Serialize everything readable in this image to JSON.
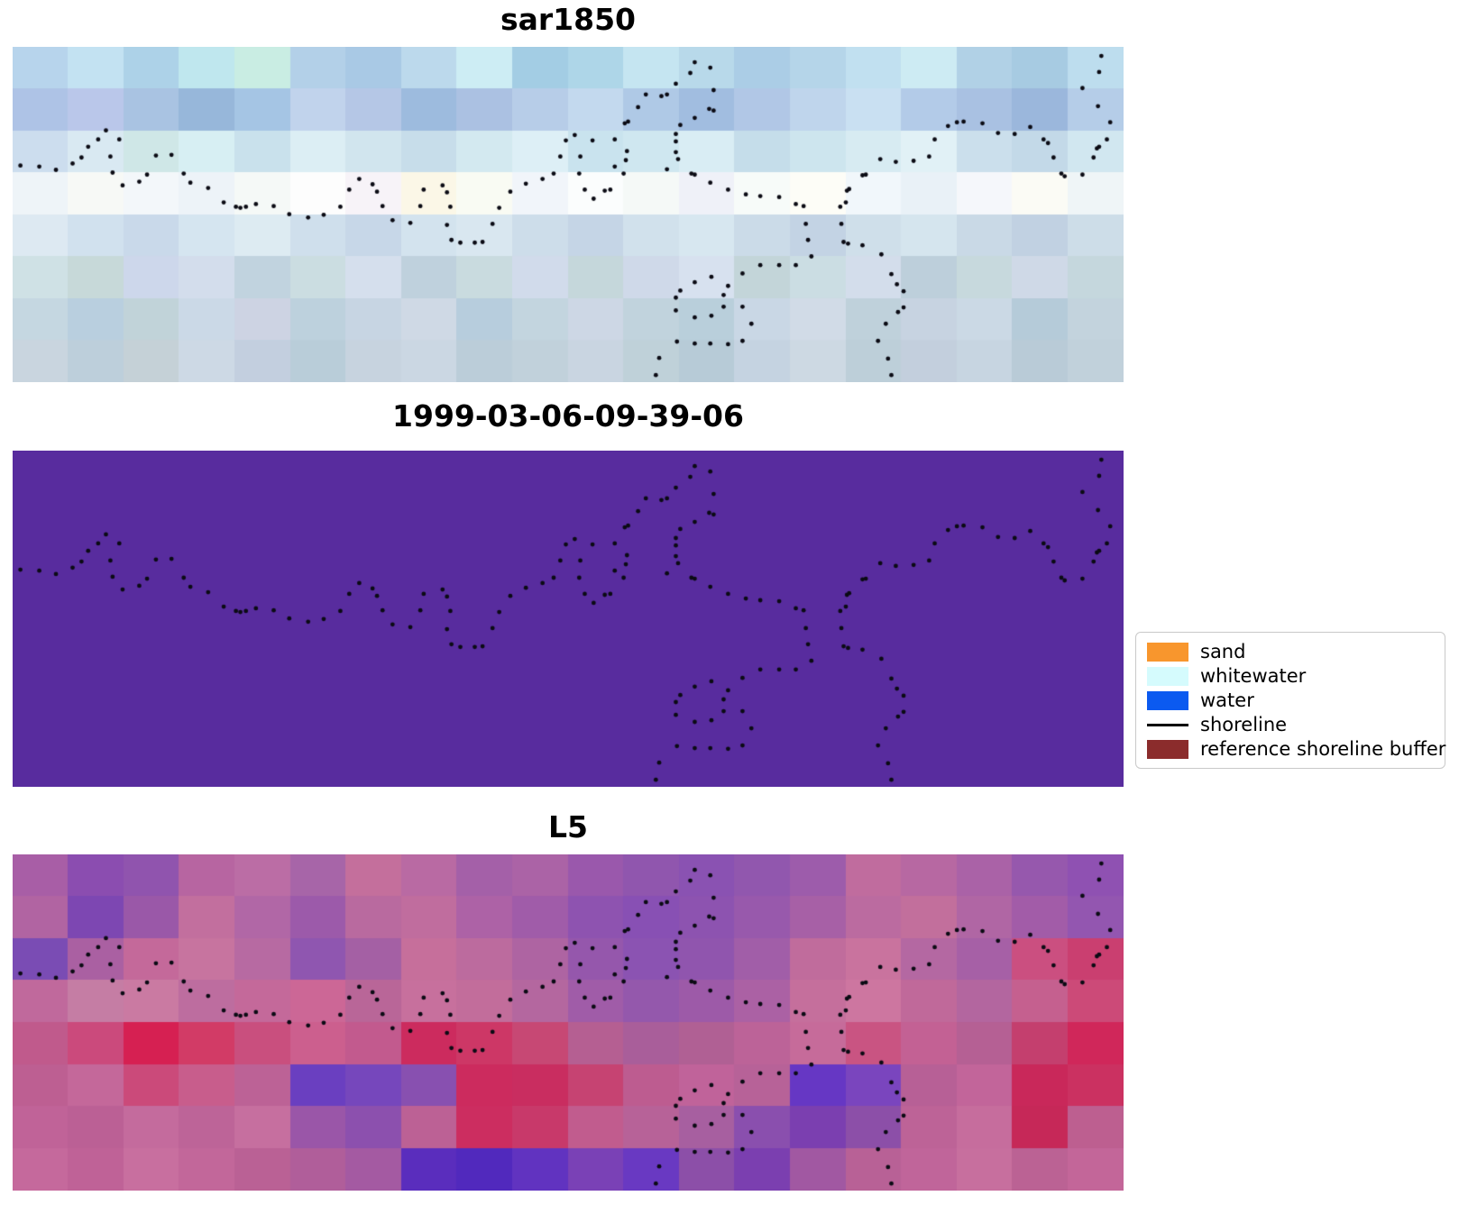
{
  "chart_data": {
    "type": "heatmap",
    "description": "Three stacked satellite image panels with identical dotted shoreline overlay and a classification legend",
    "panels": [
      {
        "title": "sar1850",
        "type": "rgb_grid",
        "grid": {
          "cols": 20,
          "rows": [
            "b7d4ec c3e2f2 add2e8 bfe7ee c9ede3 b3d0e8 a9c9e5 bcd9ec cdedf4 a3cde4 aed6e8 c5e5f1 b8d9ea abcde6 b5d5e9 c1e0f0 cdebf3 b1d1e6 a7cbe2 bdddee",
            "aec3e6 bac7ea a9c3e2 97b7da a5c5e4 c1d3ec b5c7e6 9dbbde abc1e2 b7cde8 c3d9ee afc9e6 a1bde0 b1c7e6 bfd5ec c9e0f2 b3cbe8 a9c1e2 9bb7dc b5cde8",
            "ccddee d9e9f2 cfe7e7 d7eff3 c9e1ec dceef4 d1e5ee c7ddea d3e9f0 ddeff6 c9e3ee cfe7f0 d9edf4 c5ddea cde5ee d7ebf2 e1f1f6 cbdfec c3d9e8 d1e7f0",
            "eef4f8 f7f9f6 f3f7fa edf3f8 f5f9f7 fdfdfd f7f3f8 fbf7e7 f9fbf3 f1f5fa fbfdfd f5f9f7 eff1f8 f7fbf9 fdfdf7 f1f7fb e9f1f7 f5f7fb fbfbf5 eff5f7",
            "dde9f2 d1e1ee c9d9ea d5e5f0 ddebf2 cfdfec c7d7e8 d3e3ee d9e7f0 cdddea c5d5e6 d1e1ec d7e7f0 cbdbe8 c3d3e4 cfdfea d5e5ee c9d9e6 c1d1e2 cddde8",
            "cfe1e5 c7d9d9 cdd7eb d3ddec c1d3df cbdde1 d5dfed bfd1dd c9dbdf d1dbeb c5d7db cfd9e9 d7e1ef c3d5d9 cbdde3 d3ddeb bdcfdb c7d9dd cfd9e7 c5d7dd",
            "c5d7e1 b9cfdf c1d3d9 cbd9e7 cdd3e3 bdd1dd c7d5e3 cfd9e5 b7cddd c3d5df cdd7e5 c1d3dd b9cfdb c9d7e5 d1dbe7 bfd1db c7d3e1 cbd9e5 b5cbd9 c3d3dd",
            "c9d5df bdcfdb c5d1d7 cdd9e5 c3cfdf b9cdd9 c7d3df cbd7e3 bbcdd9 c1d1db c9d5e1 bfd1d9 b7cbd7 c5d3e1 cdd9e3 bdcfd9 c3cfdd c7d5e1 b9cbd7 c1d1db"
          ]
        }
      },
      {
        "title": "1999-03-06-09-39-06",
        "type": "solid",
        "color": "#582c9e"
      },
      {
        "title": "L5",
        "type": "rgb_grid",
        "grid": {
          "cols": 20,
          "rows": [
            "a85ea6 8b4db0 9054ae b765a1 bb6da5 a765a8 c46f9c b96aa3 a460a8 ab63a6 9a58ac 9056ae 8a52b2 9157ae 9d5cab c06c9e b768a2 aa62a7 9658ad 8f51b2",
            "b164a2 7d47b2 9a58a8 c26f9e b167a6 9c5aaa b96a9f c06d9e ad62a6 a05ca9 8e53b0 8850b4 8d53b0 9859ac a760a6 bb6ba0 c26f9c b066a4 a25ca8 9356b0",
            "7a4cb4 aa60a2 c4699a c7749f b76aa2 8f56b0 a460a4 c66f9b bc6b9e ae64a2 9557ac 8b53b2 9055ae a15ea8 c06c9c c9739e b468a2 a660a6 cb4f80 ca3f70",
            "c0699c c57da4 ca7aa2 bd6d9f c4699a cc6796 b96698 c7709d c26d9b b4679f a05ca8 9458ac 9d5aa8 ab61a4 c56f9c cd76a0 c0699a b3669f c5608f cc4a78",
            "c05a8c cb4a7c d62052 d23b66 c94f7e cc5f8e c25a8e cc2b5e cd3766 c74874 b55f92 a95e9a b06094 bc6398 c66b9a c95482 c36194 b56094 c43f6e d0275a",
            "bd5f92 c4689a cb4a7a c85d8c bc6296 6a3fc0 7647bc 8850b0 cc2b5e c92d60 c64372 bd5c90 c0639a b76298 6637c4 7a45be b76096 c2659a c9285a cb3161",
            "c06398 bb6095 c46b9d bd6498 c66f9f 9a56a8 8c50ae bc6195 cc2d60 c8396a c15c8e b76298 a75fa0 8a4fae 7b3fb0 8c4fa8 bd6397 c66d9d c62858 bd5f90",
            "c5699c bf6297 c86f9f c2679a ba6195 b05e9a a45aa2 5a2dbd 5129bd 6133c0 7a41b6 6939c2 8c4fa8 7b3fb0 a158a2 b86196 c0659a c76f9e bb6294 c36699"
          ]
        }
      }
    ],
    "legend": {
      "items": [
        {
          "label": "sand",
          "color": "#f8962d",
          "style": "patch"
        },
        {
          "label": "whitewater",
          "color": "#d5fbfd",
          "style": "patch"
        },
        {
          "label": "water",
          "color": "#0b5af0",
          "style": "patch"
        },
        {
          "label": "shoreline",
          "color": "#000000",
          "style": "line"
        },
        {
          "label": "reference shoreline buffer",
          "color": "#8b2c2c",
          "style": "patch"
        }
      ]
    },
    "shoreline": {
      "color": "#0b0b14",
      "dot_radius": 2.4,
      "points": [
        [
          0.007,
          0.354
        ],
        [
          0.024,
          0.357
        ],
        [
          0.039,
          0.367
        ],
        [
          0.054,
          0.348
        ],
        [
          0.062,
          0.33
        ],
        [
          0.068,
          0.298
        ],
        [
          0.077,
          0.276
        ],
        [
          0.084,
          0.249
        ],
        [
          0.088,
          0.327
        ],
        [
          0.09,
          0.375
        ],
        [
          0.096,
          0.276
        ],
        [
          0.099,
          0.413
        ],
        [
          0.114,
          0.402
        ],
        [
          0.121,
          0.381
        ],
        [
          0.129,
          0.324
        ],
        [
          0.143,
          0.322
        ],
        [
          0.154,
          0.378
        ],
        [
          0.16,
          0.405
        ],
        [
          0.176,
          0.421
        ],
        [
          0.19,
          0.464
        ],
        [
          0.201,
          0.477
        ],
        [
          0.205,
          0.48
        ],
        [
          0.21,
          0.477
        ],
        [
          0.219,
          0.469
        ],
        [
          0.235,
          0.475
        ],
        [
          0.249,
          0.499
        ],
        [
          0.266,
          0.509
        ],
        [
          0.28,
          0.501
        ],
        [
          0.295,
          0.477
        ],
        [
          0.303,
          0.426
        ],
        [
          0.312,
          0.394
        ],
        [
          0.324,
          0.41
        ],
        [
          0.328,
          0.432
        ],
        [
          0.333,
          0.475
        ],
        [
          0.342,
          0.517
        ],
        [
          0.358,
          0.525
        ],
        [
          0.367,
          0.475
        ],
        [
          0.37,
          0.426
        ],
        [
          0.387,
          0.413
        ],
        [
          0.391,
          0.434
        ],
        [
          0.391,
          0.531
        ],
        [
          0.394,
          0.477
        ],
        [
          0.395,
          0.576
        ],
        [
          0.403,
          0.584
        ],
        [
          0.416,
          0.584
        ],
        [
          0.423,
          0.582
        ],
        [
          0.432,
          0.528
        ],
        [
          0.438,
          0.48
        ],
        [
          0.448,
          0.432
        ],
        [
          0.462,
          0.408
        ],
        [
          0.477,
          0.394
        ],
        [
          0.487,
          0.378
        ],
        [
          0.493,
          0.327
        ],
        [
          0.498,
          0.279
        ],
        [
          0.506,
          0.263
        ],
        [
          0.51,
          0.378
        ],
        [
          0.511,
          0.327
        ],
        [
          0.515,
          0.426
        ],
        [
          0.522,
          0.279
        ],
        [
          0.523,
          0.453
        ],
        [
          0.533,
          0.429
        ],
        [
          0.538,
          0.426
        ],
        [
          0.542,
          0.357
        ],
        [
          0.542,
          0.276
        ],
        [
          0.55,
          0.378
        ],
        [
          0.552,
          0.338
        ],
        [
          0.553,
          0.311
        ],
        [
          0.551,
          0.228
        ],
        [
          0.554,
          0.223
        ],
        [
          0.563,
          0.18
        ],
        [
          0.57,
          0.142
        ],
        [
          0.584,
          0.147
        ],
        [
          0.589,
          0.142
        ],
        [
          0.597,
          0.11
        ],
        [
          0.61,
          0.078
        ],
        [
          0.614,
          0.046
        ],
        [
          0.628,
          0.062
        ],
        [
          0.631,
          0.129
        ],
        [
          0.627,
          0.185
        ],
        [
          0.631,
          0.19
        ],
        [
          0.614,
          0.212
        ],
        [
          0.601,
          0.233
        ],
        [
          0.597,
          0.26
        ],
        [
          0.597,
          0.282
        ],
        [
          0.597,
          0.314
        ],
        [
          0.599,
          0.335
        ],
        [
          0.589,
          0.365
        ],
        [
          0.611,
          0.378
        ],
        [
          0.614,
          0.381
        ],
        [
          0.628,
          0.405
        ],
        [
          0.644,
          0.426
        ],
        [
          0.66,
          0.44
        ],
        [
          0.673,
          0.445
        ],
        [
          0.69,
          0.448
        ],
        [
          0.705,
          0.469
        ],
        [
          0.712,
          0.475
        ],
        [
          0.714,
          0.528
        ],
        [
          0.716,
          0.576
        ],
        [
          0.719,
          0.625
        ],
        [
          0.69,
          0.651
        ],
        [
          0.705,
          0.651
        ],
        [
          0.745,
          0.477
        ],
        [
          0.746,
          0.528
        ],
        [
          0.748,
          0.582
        ],
        [
          0.752,
          0.587
        ],
        [
          0.75,
          0.464
        ],
        [
          0.751,
          0.429
        ],
        [
          0.753,
          0.424
        ],
        [
          0.765,
          0.592
        ],
        [
          0.765,
          0.383
        ],
        [
          0.768,
          0.381
        ],
        [
          0.781,
          0.335
        ],
        [
          0.782,
          0.619
        ],
        [
          0.795,
          0.343
        ],
        [
          0.811,
          0.34
        ],
        [
          0.791,
          0.678
        ],
        [
          0.796,
          0.708
        ],
        [
          0.802,
          0.729
        ],
        [
          0.802,
          0.777
        ],
        [
          0.797,
          0.791
        ],
        [
          0.786,
          0.826
        ],
        [
          0.779,
          0.877
        ],
        [
          0.788,
          0.93
        ],
        [
          0.791,
          0.979
        ],
        [
          0.825,
          0.327
        ],
        [
          0.83,
          0.276
        ],
        [
          0.842,
          0.236
        ],
        [
          0.85,
          0.225
        ],
        [
          0.856,
          0.223
        ],
        [
          0.873,
          0.228
        ],
        [
          0.887,
          0.257
        ],
        [
          0.902,
          0.26
        ],
        [
          0.916,
          0.239
        ],
        [
          0.928,
          0.276
        ],
        [
          0.932,
          0.287
        ],
        [
          0.937,
          0.33
        ],
        [
          0.944,
          0.378
        ],
        [
          0.947,
          0.386
        ],
        [
          0.963,
          0.381
        ],
        [
          0.973,
          0.33
        ],
        [
          0.976,
          0.303
        ],
        [
          0.978,
          0.298
        ],
        [
          0.985,
          0.276
        ],
        [
          0.988,
          0.225
        ],
        [
          0.977,
          0.177
        ],
        [
          0.963,
          0.123
        ],
        [
          0.978,
          0.075
        ],
        [
          0.98,
          0.027
        ],
        [
          0.673,
          0.651
        ],
        [
          0.657,
          0.676
        ],
        [
          0.629,
          0.686
        ],
        [
          0.614,
          0.702
        ],
        [
          0.601,
          0.727
        ],
        [
          0.597,
          0.748
        ],
        [
          0.597,
          0.786
        ],
        [
          0.598,
          0.879
        ],
        [
          0.614,
          0.885
        ],
        [
          0.628,
          0.885
        ],
        [
          0.644,
          0.887
        ],
        [
          0.657,
          0.877
        ],
        [
          0.665,
          0.826
        ],
        [
          0.644,
          0.713
        ],
        [
          0.64,
          0.74
        ],
        [
          0.64,
          0.775
        ],
        [
          0.657,
          0.775
        ],
        [
          0.629,
          0.802
        ],
        [
          0.614,
          0.807
        ],
        [
          0.582,
          0.928
        ],
        [
          0.579,
          0.979
        ]
      ]
    }
  }
}
